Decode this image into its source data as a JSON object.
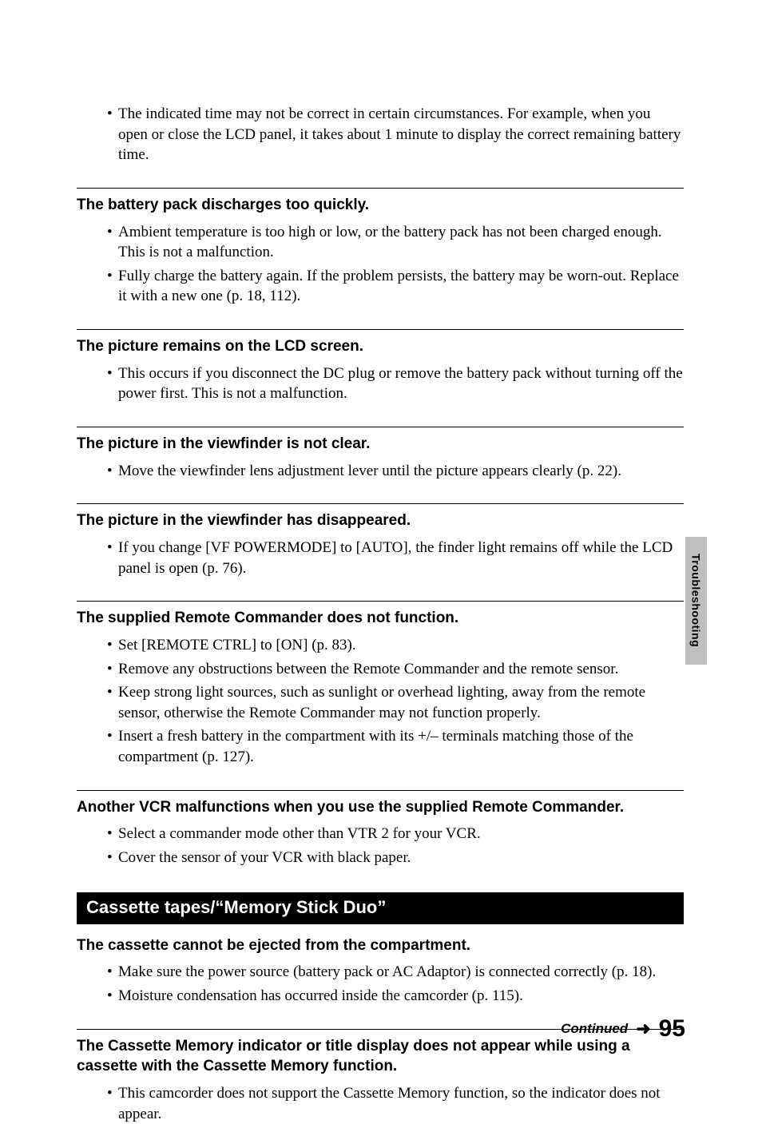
{
  "intro_bullet": "The indicated time may not be correct in certain circumstances. For example, when you open or close the LCD panel, it takes about 1 minute to display the correct remaining battery time.",
  "sections": [
    {
      "title": "The battery pack discharges too quickly.",
      "items": [
        "Ambient temperature is too high or low, or the battery pack has not been charged enough. This is not a malfunction.",
        "Fully charge the battery again. If the problem persists, the battery may be worn-out. Replace it with a new one (p. 18, 112)."
      ]
    },
    {
      "title": "The picture remains on the LCD screen.",
      "items": [
        "This occurs if you disconnect the DC plug or remove the battery pack without turning off the power first. This is not a malfunction."
      ]
    },
    {
      "title": "The picture in the viewfinder is not clear.",
      "items": [
        "Move the viewfinder lens adjustment lever until the picture appears clearly (p. 22)."
      ]
    },
    {
      "title": "The picture in the viewfinder has disappeared.",
      "items": [
        "If you change [VF POWERMODE] to [AUTO], the finder light remains off while the LCD panel is open (p. 76)."
      ]
    },
    {
      "title": "The supplied Remote Commander does not function.",
      "items": [
        "Set [REMOTE CTRL] to [ON] (p. 83).",
        "Remove any obstructions between the Remote Commander and the remote sensor.",
        "Keep strong light sources, such as sunlight or overhead lighting, away from the remote sensor, otherwise the Remote Commander may not function properly.",
        "Insert a fresh battery in the compartment with its +/– terminals matching those of the compartment (p. 127)."
      ]
    },
    {
      "title": "Another VCR malfunctions when you use the supplied Remote Commander.",
      "items": [
        "Select a commander mode other than VTR 2 for your VCR.",
        "Cover the sensor of your VCR with black paper."
      ]
    }
  ],
  "banner": "Cassette tapes/“Memory Stick Duo”",
  "sections2": [
    {
      "title": "The cassette cannot be ejected from the compartment.",
      "items": [
        "Make sure the power source (battery pack or AC Adaptor) is connected correctly (p. 18).",
        "Moisture condensation has occurred inside the camcorder (p. 115)."
      ]
    },
    {
      "title": "The Cassette Memory indicator or title display does not appear while using a cassette with the Cassette Memory function.",
      "items": [
        "This camcorder does not support the Cassette Memory function, so the indicator does not appear."
      ]
    }
  ],
  "side_tab": "Troubleshooting",
  "continued": "Continued",
  "arrow": "➜",
  "pagenum": "95"
}
